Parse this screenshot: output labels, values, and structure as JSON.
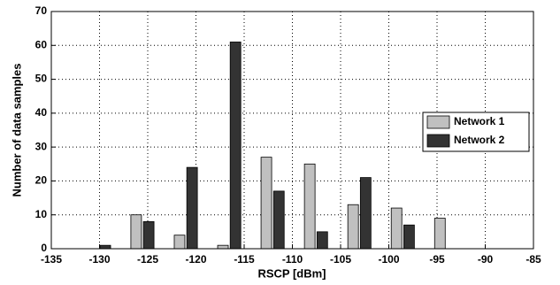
{
  "chart_data": {
    "type": "bar",
    "xlabel": "RSCP [dBm]",
    "ylabel": "Number of data samples",
    "x": [
      -130.05,
      -125.55,
      -121.05,
      -116.55,
      -112.05,
      -107.55,
      -103.05,
      -98.55,
      -94.05
    ],
    "series": [
      {
        "name": "Network 1",
        "color": "#c0c0c0",
        "values": [
          0,
          10,
          4,
          1,
          27,
          25,
          13,
          12,
          9
        ]
      },
      {
        "name": "Network 2",
        "color": "#333333",
        "values": [
          1,
          8,
          24,
          61,
          17,
          5,
          21,
          7,
          0
        ]
      }
    ],
    "xlim": [
      -135,
      -85
    ],
    "xticks": [
      -135,
      -130,
      -125,
      -120,
      -115,
      -110,
      -105,
      -100,
      -95,
      -90,
      -85
    ],
    "ylim": [
      0,
      70
    ],
    "yticks": [
      0,
      10,
      20,
      30,
      40,
      50,
      60,
      70
    ],
    "grid": true,
    "legend": "right"
  }
}
